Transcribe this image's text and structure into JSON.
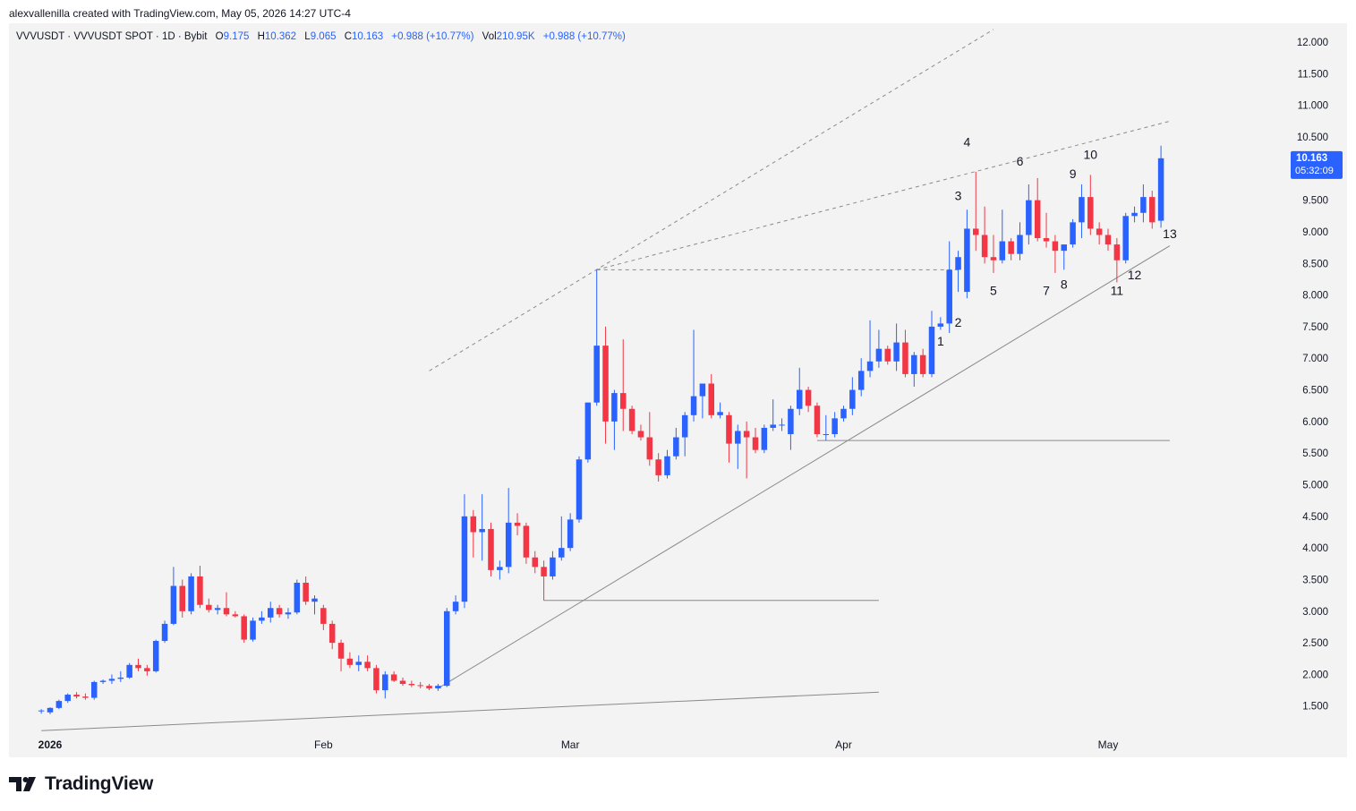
{
  "header": {
    "attribution": "alexvallenilla created with TradingView.com, May 05, 2026 14:27 UTC-4"
  },
  "legend": {
    "symbol": "VVVUSDT · VVVUSDT SPOT · 1D · Bybit",
    "open_label": "O",
    "open": "9.175",
    "high_label": "H",
    "high": "10.362",
    "low_label": "L",
    "low": "9.065",
    "close_label": "C",
    "close": "10.163",
    "change": "+0.988 (+10.77%)",
    "vol_label": "Vol",
    "vol": "210.95K",
    "vol_change": "+0.988 (+10.77%)"
  },
  "price_tag": {
    "price": "10.163",
    "countdown": "05:32:09",
    "value": 10.163
  },
  "footer": {
    "brand": "TradingView"
  },
  "colors": {
    "up": "#2962ff",
    "down": "#f23645",
    "line": "#8a8a8a",
    "tag": "#2962ff"
  },
  "chart_data": {
    "type": "candlestick",
    "y_ticks": [
      "12.000",
      "11.500",
      "11.000",
      "10.500",
      "10.000",
      "9.500",
      "9.000",
      "8.500",
      "8.000",
      "7.500",
      "7.000",
      "6.500",
      "6.000",
      "5.500",
      "5.000",
      "4.500",
      "4.000",
      "3.500",
      "3.000",
      "2.500",
      "2.000",
      "1.500"
    ],
    "ylim": [
      1.1,
      12.1
    ],
    "x_ticks": [
      {
        "label": "2026",
        "date": "2026-01-01",
        "bold": true
      },
      {
        "label": "Feb",
        "date": "2026-02-01"
      },
      {
        "label": "Mar",
        "date": "2026-03-01"
      },
      {
        "label": "Apr",
        "date": "2026-04-01"
      },
      {
        "label": "May",
        "date": "2026-05-01"
      }
    ],
    "candles": [
      {
        "date": "2025-12-31",
        "o": 1.42,
        "h": 1.45,
        "l": 1.38,
        "c": 1.43
      },
      {
        "date": "2026-01-01",
        "o": 1.4,
        "h": 1.48,
        "l": 1.37,
        "c": 1.47
      },
      {
        "date": "2026-01-02",
        "o": 1.47,
        "h": 1.6,
        "l": 1.45,
        "c": 1.58
      },
      {
        "date": "2026-01-03",
        "o": 1.58,
        "h": 1.7,
        "l": 1.55,
        "c": 1.68
      },
      {
        "date": "2026-01-04",
        "o": 1.68,
        "h": 1.72,
        "l": 1.62,
        "c": 1.65
      },
      {
        "date": "2026-01-05",
        "o": 1.65,
        "h": 1.7,
        "l": 1.6,
        "c": 1.63
      },
      {
        "date": "2026-01-06",
        "o": 1.63,
        "h": 1.9,
        "l": 1.6,
        "c": 1.88
      },
      {
        "date": "2026-01-07",
        "o": 1.88,
        "h": 1.92,
        "l": 1.85,
        "c": 1.9
      },
      {
        "date": "2026-01-08",
        "o": 1.9,
        "h": 2.0,
        "l": 1.85,
        "c": 1.93
      },
      {
        "date": "2026-01-09",
        "o": 1.93,
        "h": 2.05,
        "l": 1.88,
        "c": 1.95
      },
      {
        "date": "2026-01-10",
        "o": 1.95,
        "h": 2.18,
        "l": 1.93,
        "c": 2.15
      },
      {
        "date": "2026-01-11",
        "o": 2.15,
        "h": 2.25,
        "l": 2.05,
        "c": 2.1
      },
      {
        "date": "2026-01-12",
        "o": 2.1,
        "h": 2.15,
        "l": 1.98,
        "c": 2.05
      },
      {
        "date": "2026-01-13",
        "o": 2.05,
        "h": 2.55,
        "l": 2.03,
        "c": 2.53
      },
      {
        "date": "2026-01-14",
        "o": 2.53,
        "h": 2.85,
        "l": 2.5,
        "c": 2.8
      },
      {
        "date": "2026-01-15",
        "o": 2.8,
        "h": 3.7,
        "l": 2.78,
        "c": 3.4
      },
      {
        "date": "2026-01-16",
        "o": 3.4,
        "h": 3.5,
        "l": 2.9,
        "c": 3.0
      },
      {
        "date": "2026-01-17",
        "o": 3.0,
        "h": 3.6,
        "l": 2.95,
        "c": 3.55
      },
      {
        "date": "2026-01-18",
        "o": 3.55,
        "h": 3.72,
        "l": 3.05,
        "c": 3.1
      },
      {
        "date": "2026-01-19",
        "o": 3.1,
        "h": 3.2,
        "l": 2.98,
        "c": 3.02
      },
      {
        "date": "2026-01-20",
        "o": 3.02,
        "h": 3.1,
        "l": 2.95,
        "c": 3.05
      },
      {
        "date": "2026-01-21",
        "o": 3.05,
        "h": 3.3,
        "l": 2.92,
        "c": 2.95
      },
      {
        "date": "2026-01-22",
        "o": 2.95,
        "h": 3.0,
        "l": 2.9,
        "c": 2.92
      },
      {
        "date": "2026-01-23",
        "o": 2.92,
        "h": 2.95,
        "l": 2.5,
        "c": 2.55
      },
      {
        "date": "2026-01-24",
        "o": 2.55,
        "h": 2.9,
        "l": 2.52,
        "c": 2.85
      },
      {
        "date": "2026-01-25",
        "o": 2.85,
        "h": 3.0,
        "l": 2.8,
        "c": 2.9
      },
      {
        "date": "2026-01-26",
        "o": 2.9,
        "h": 3.15,
        "l": 2.82,
        "c": 3.05
      },
      {
        "date": "2026-01-27",
        "o": 3.05,
        "h": 3.1,
        "l": 2.9,
        "c": 2.95
      },
      {
        "date": "2026-01-28",
        "o": 2.95,
        "h": 3.05,
        "l": 2.88,
        "c": 2.98
      },
      {
        "date": "2026-01-29",
        "o": 2.98,
        "h": 3.5,
        "l": 2.95,
        "c": 3.45
      },
      {
        "date": "2026-01-30",
        "o": 3.45,
        "h": 3.55,
        "l": 3.1,
        "c": 3.15
      },
      {
        "date": "2026-01-31",
        "o": 3.15,
        "h": 3.25,
        "l": 2.95,
        "c": 3.2
      },
      {
        "date": "2026-02-01",
        "o": 3.05,
        "h": 3.1,
        "l": 2.7,
        "c": 2.8
      },
      {
        "date": "2026-02-02",
        "o": 2.8,
        "h": 2.85,
        "l": 2.4,
        "c": 2.5
      },
      {
        "date": "2026-02-03",
        "o": 2.5,
        "h": 2.55,
        "l": 2.05,
        "c": 2.25
      },
      {
        "date": "2026-02-04",
        "o": 2.25,
        "h": 2.35,
        "l": 2.1,
        "c": 2.15
      },
      {
        "date": "2026-02-05",
        "o": 2.15,
        "h": 2.3,
        "l": 2.05,
        "c": 2.2
      },
      {
        "date": "2026-02-06",
        "o": 2.2,
        "h": 2.3,
        "l": 2.05,
        "c": 2.1
      },
      {
        "date": "2026-02-07",
        "o": 2.1,
        "h": 2.15,
        "l": 1.7,
        "c": 1.75
      },
      {
        "date": "2026-02-08",
        "o": 1.75,
        "h": 2.05,
        "l": 1.62,
        "c": 2.0
      },
      {
        "date": "2026-02-09",
        "o": 2.0,
        "h": 2.05,
        "l": 1.88,
        "c": 1.9
      },
      {
        "date": "2026-02-10",
        "o": 1.9,
        "h": 1.95,
        "l": 1.82,
        "c": 1.85
      },
      {
        "date": "2026-02-11",
        "o": 1.85,
        "h": 1.9,
        "l": 1.8,
        "c": 1.83
      },
      {
        "date": "2026-02-12",
        "o": 1.83,
        "h": 1.88,
        "l": 1.78,
        "c": 1.82
      },
      {
        "date": "2026-02-13",
        "o": 1.82,
        "h": 1.85,
        "l": 1.75,
        "c": 1.78
      },
      {
        "date": "2026-02-14",
        "o": 1.78,
        "h": 1.85,
        "l": 1.74,
        "c": 1.82
      },
      {
        "date": "2026-02-15",
        "o": 1.82,
        "h": 3.05,
        "l": 1.8,
        "c": 3.0
      },
      {
        "date": "2026-02-16",
        "o": 3.0,
        "h": 3.25,
        "l": 2.95,
        "c": 3.15
      },
      {
        "date": "2026-02-17",
        "o": 3.15,
        "h": 4.85,
        "l": 3.05,
        "c": 4.5
      },
      {
        "date": "2026-02-18",
        "o": 4.5,
        "h": 4.6,
        "l": 3.85,
        "c": 4.25
      },
      {
        "date": "2026-02-19",
        "o": 4.25,
        "h": 4.85,
        "l": 3.8,
        "c": 4.3
      },
      {
        "date": "2026-02-20",
        "o": 4.3,
        "h": 4.4,
        "l": 3.55,
        "c": 3.65
      },
      {
        "date": "2026-02-21",
        "o": 3.65,
        "h": 3.8,
        "l": 3.5,
        "c": 3.7
      },
      {
        "date": "2026-02-22",
        "o": 3.7,
        "h": 4.95,
        "l": 3.6,
        "c": 4.4
      },
      {
        "date": "2026-02-23",
        "o": 4.4,
        "h": 4.55,
        "l": 4.2,
        "c": 4.35
      },
      {
        "date": "2026-02-24",
        "o": 4.35,
        "h": 4.4,
        "l": 3.75,
        "c": 3.85
      },
      {
        "date": "2026-02-25",
        "o": 3.85,
        "h": 3.95,
        "l": 3.6,
        "c": 3.7
      },
      {
        "date": "2026-02-26",
        "o": 3.7,
        "h": 3.8,
        "l": 3.17,
        "c": 3.55
      },
      {
        "date": "2026-02-27",
        "o": 3.55,
        "h": 3.95,
        "l": 3.5,
        "c": 3.85
      },
      {
        "date": "2026-02-28",
        "o": 3.85,
        "h": 4.5,
        "l": 3.8,
        "c": 4.0
      },
      {
        "date": "2026-03-01",
        "o": 4.0,
        "h": 4.55,
        "l": 3.95,
        "c": 4.45
      },
      {
        "date": "2026-03-02",
        "o": 4.45,
        "h": 5.45,
        "l": 4.4,
        "c": 5.4
      },
      {
        "date": "2026-03-03",
        "o": 5.4,
        "h": 6.3,
        "l": 5.35,
        "c": 6.3
      },
      {
        "date": "2026-03-04",
        "o": 6.3,
        "h": 8.4,
        "l": 6.25,
        "c": 7.2
      },
      {
        "date": "2026-03-05",
        "o": 7.2,
        "h": 7.5,
        "l": 5.65,
        "c": 6.0
      },
      {
        "date": "2026-03-06",
        "o": 6.0,
        "h": 6.5,
        "l": 5.55,
        "c": 6.45
      },
      {
        "date": "2026-03-07",
        "o": 6.45,
        "h": 7.3,
        "l": 5.85,
        "c": 6.2
      },
      {
        "date": "2026-03-08",
        "o": 6.2,
        "h": 6.25,
        "l": 5.8,
        "c": 5.85
      },
      {
        "date": "2026-03-09",
        "o": 5.85,
        "h": 5.95,
        "l": 5.7,
        "c": 5.75
      },
      {
        "date": "2026-03-10",
        "o": 5.75,
        "h": 6.15,
        "l": 5.3,
        "c": 5.4
      },
      {
        "date": "2026-03-11",
        "o": 5.4,
        "h": 5.5,
        "l": 5.05,
        "c": 5.15
      },
      {
        "date": "2026-03-12",
        "o": 5.15,
        "h": 5.55,
        "l": 5.1,
        "c": 5.45
      },
      {
        "date": "2026-03-13",
        "o": 5.45,
        "h": 5.9,
        "l": 5.4,
        "c": 5.75
      },
      {
        "date": "2026-03-14",
        "o": 5.75,
        "h": 6.15,
        "l": 5.45,
        "c": 6.1
      },
      {
        "date": "2026-03-15",
        "o": 6.1,
        "h": 7.45,
        "l": 6.0,
        "c": 6.4
      },
      {
        "date": "2026-03-16",
        "o": 6.4,
        "h": 6.6,
        "l": 6.05,
        "c": 6.6
      },
      {
        "date": "2026-03-17",
        "o": 6.6,
        "h": 6.75,
        "l": 6.05,
        "c": 6.1
      },
      {
        "date": "2026-03-18",
        "o": 6.1,
        "h": 6.3,
        "l": 6.05,
        "c": 6.15
      },
      {
        "date": "2026-03-19",
        "o": 6.1,
        "h": 6.15,
        "l": 5.35,
        "c": 5.65
      },
      {
        "date": "2026-03-20",
        "o": 5.65,
        "h": 5.95,
        "l": 5.25,
        "c": 5.85
      },
      {
        "date": "2026-03-21",
        "o": 5.85,
        "h": 6.0,
        "l": 5.1,
        "c": 5.75
      },
      {
        "date": "2026-03-22",
        "o": 5.75,
        "h": 5.9,
        "l": 5.5,
        "c": 5.55
      },
      {
        "date": "2026-03-23",
        "o": 5.55,
        "h": 5.95,
        "l": 5.5,
        "c": 5.9
      },
      {
        "date": "2026-03-24",
        "o": 5.9,
        "h": 6.35,
        "l": 5.85,
        "c": 5.95
      },
      {
        "date": "2026-03-25",
        "o": 5.95,
        "h": 6.05,
        "l": 5.85,
        "c": 5.95
      },
      {
        "date": "2026-03-26",
        "o": 5.8,
        "h": 6.25,
        "l": 5.55,
        "c": 6.2
      },
      {
        "date": "2026-03-27",
        "o": 6.2,
        "h": 6.85,
        "l": 6.1,
        "c": 6.5
      },
      {
        "date": "2026-03-28",
        "o": 6.5,
        "h": 6.55,
        "l": 6.15,
        "c": 6.25
      },
      {
        "date": "2026-03-29",
        "o": 6.25,
        "h": 6.3,
        "l": 5.75,
        "c": 5.8
      },
      {
        "date": "2026-03-30",
        "o": 5.8,
        "h": 6.1,
        "l": 5.7,
        "c": 5.8
      },
      {
        "date": "2026-03-31",
        "o": 5.8,
        "h": 6.15,
        "l": 5.75,
        "c": 6.05
      },
      {
        "date": "2026-04-01",
        "o": 6.05,
        "h": 6.25,
        "l": 6.0,
        "c": 6.2
      },
      {
        "date": "2026-04-02",
        "o": 6.2,
        "h": 6.7,
        "l": 6.1,
        "c": 6.5
      },
      {
        "date": "2026-04-03",
        "o": 6.5,
        "h": 7.0,
        "l": 6.4,
        "c": 6.8
      },
      {
        "date": "2026-04-04",
        "o": 6.8,
        "h": 7.6,
        "l": 6.7,
        "c": 6.95
      },
      {
        "date": "2026-04-05",
        "o": 6.95,
        "h": 7.45,
        "l": 6.85,
        "c": 7.15
      },
      {
        "date": "2026-04-06",
        "o": 7.15,
        "h": 7.2,
        "l": 6.9,
        "c": 6.95
      },
      {
        "date": "2026-04-07",
        "o": 6.95,
        "h": 7.55,
        "l": 6.8,
        "c": 7.25
      },
      {
        "date": "2026-04-08",
        "o": 7.25,
        "h": 7.45,
        "l": 6.7,
        "c": 6.75
      },
      {
        "date": "2026-04-09",
        "o": 6.75,
        "h": 7.1,
        "l": 6.55,
        "c": 7.05
      },
      {
        "date": "2026-04-10",
        "o": 7.05,
        "h": 7.15,
        "l": 6.7,
        "c": 6.75
      },
      {
        "date": "2026-04-11",
        "o": 6.75,
        "h": 7.75,
        "l": 6.7,
        "c": 7.5
      },
      {
        "date": "2026-04-12",
        "o": 7.5,
        "h": 7.65,
        "l": 7.45,
        "c": 7.55
      },
      {
        "date": "2026-04-13",
        "o": 7.55,
        "h": 8.85,
        "l": 7.4,
        "c": 8.4
      },
      {
        "date": "2026-04-14",
        "o": 8.4,
        "h": 8.7,
        "l": 8.05,
        "c": 8.6
      },
      {
        "date": "2026-04-15",
        "o": 8.05,
        "h": 9.35,
        "l": 7.95,
        "c": 9.05
      },
      {
        "date": "2026-04-16",
        "o": 9.05,
        "h": 9.95,
        "l": 8.7,
        "c": 8.95
      },
      {
        "date": "2026-04-17",
        "o": 8.95,
        "h": 9.4,
        "l": 8.5,
        "c": 8.6
      },
      {
        "date": "2026-04-18",
        "o": 8.6,
        "h": 8.95,
        "l": 8.35,
        "c": 8.55
      },
      {
        "date": "2026-04-19",
        "o": 8.55,
        "h": 9.35,
        "l": 8.5,
        "c": 8.85
      },
      {
        "date": "2026-04-20",
        "o": 8.85,
        "h": 8.9,
        "l": 8.55,
        "c": 8.65
      },
      {
        "date": "2026-04-21",
        "o": 8.65,
        "h": 9.15,
        "l": 8.55,
        "c": 8.95
      },
      {
        "date": "2026-04-22",
        "o": 8.95,
        "h": 9.75,
        "l": 8.8,
        "c": 9.5
      },
      {
        "date": "2026-04-23",
        "o": 9.5,
        "h": 9.85,
        "l": 8.85,
        "c": 8.9
      },
      {
        "date": "2026-04-24",
        "o": 8.9,
        "h": 9.3,
        "l": 8.75,
        "c": 8.85
      },
      {
        "date": "2026-04-25",
        "o": 8.85,
        "h": 8.95,
        "l": 8.35,
        "c": 8.7
      },
      {
        "date": "2026-04-26",
        "o": 8.7,
        "h": 8.8,
        "l": 8.4,
        "c": 8.8
      },
      {
        "date": "2026-04-27",
        "o": 8.8,
        "h": 9.2,
        "l": 8.75,
        "c": 9.15
      },
      {
        "date": "2026-04-28",
        "o": 9.15,
        "h": 9.75,
        "l": 8.9,
        "c": 9.55
      },
      {
        "date": "2026-04-29",
        "o": 9.55,
        "h": 9.9,
        "l": 8.95,
        "c": 9.05
      },
      {
        "date": "2026-04-30",
        "o": 9.05,
        "h": 9.15,
        "l": 8.8,
        "c": 8.95
      },
      {
        "date": "2026-05-01",
        "o": 8.95,
        "h": 9.05,
        "l": 8.7,
        "c": 8.8
      },
      {
        "date": "2026-05-02",
        "o": 8.8,
        "h": 8.9,
        "l": 8.2,
        "c": 8.55
      },
      {
        "date": "2026-05-03",
        "o": 8.55,
        "h": 9.3,
        "l": 8.5,
        "c": 9.25
      },
      {
        "date": "2026-05-04",
        "o": 9.25,
        "h": 9.4,
        "l": 9.15,
        "c": 9.3
      },
      {
        "date": "2026-05-05",
        "o": 9.3,
        "h": 9.75,
        "l": 9.15,
        "c": 9.55
      },
      {
        "date": "2026-05-06",
        "o": 9.55,
        "h": 9.65,
        "l": 9.05,
        "c": 9.15
      },
      {
        "date": "2026-05-07",
        "o": 9.175,
        "h": 10.362,
        "l": 9.065,
        "c": 10.163
      }
    ],
    "annotations": [
      {
        "text": "1",
        "date": "2026-04-12",
        "y": 7.2
      },
      {
        "text": "2",
        "date": "2026-04-14",
        "y": 7.5
      },
      {
        "text": "3",
        "date": "2026-04-14",
        "y": 9.5
      },
      {
        "text": "4",
        "date": "2026-04-15",
        "y": 10.35
      },
      {
        "text": "5",
        "date": "2026-04-18",
        "y": 8.0
      },
      {
        "text": "6",
        "date": "2026-04-21",
        "y": 10.05
      },
      {
        "text": "7",
        "date": "2026-04-24",
        "y": 8.0
      },
      {
        "text": "8",
        "date": "2026-04-26",
        "y": 8.1
      },
      {
        "text": "9",
        "date": "2026-04-27",
        "y": 9.85
      },
      {
        "text": "10",
        "date": "2026-04-29",
        "y": 10.15
      },
      {
        "text": "11",
        "date": "2026-05-02",
        "y": 8.0
      },
      {
        "text": "12",
        "date": "2026-05-04",
        "y": 8.25
      },
      {
        "text": "13",
        "date": "2026-05-08",
        "y": 8.9
      }
    ],
    "lines": [
      {
        "from": [
          "2025-12-31",
          1.11
        ],
        "to": [
          "2026-04-05",
          1.72
        ],
        "style": "solid"
      },
      {
        "from": [
          "2026-02-14",
          1.78
        ],
        "to": [
          "2026-05-08",
          8.78
        ],
        "style": "solid"
      },
      {
        "from": [
          "2026-02-26",
          3.17
        ],
        "to": [
          "2026-04-05",
          3.17
        ],
        "style": "solid"
      },
      {
        "from": [
          "2026-03-29",
          5.7
        ],
        "to": [
          "2026-05-08",
          5.7
        ],
        "style": "solid"
      },
      {
        "from": [
          "2026-03-04",
          8.4
        ],
        "to": [
          "2026-04-14",
          8.4
        ],
        "style": "dashed"
      },
      {
        "from": [
          "2026-03-04",
          8.4
        ],
        "to": [
          "2026-05-08",
          10.75
        ],
        "style": "dashed"
      },
      {
        "from": [
          "2026-02-13",
          6.8
        ],
        "to": [
          "2026-04-18",
          12.2
        ],
        "style": "dashed"
      }
    ]
  }
}
